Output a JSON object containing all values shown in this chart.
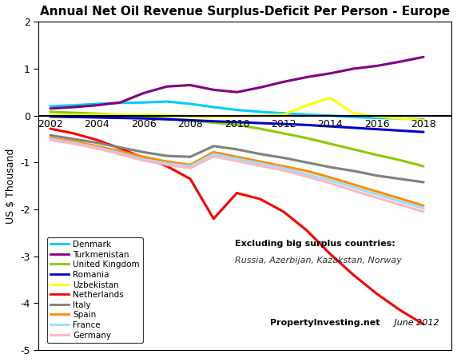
{
  "title": "Annual Net Oil Revenue Surplus-Deficit Per Person - Europe",
  "ylabel": "US $ Thousand",
  "xlim": [
    2001.5,
    2019.2
  ],
  "ylim": [
    -5,
    2
  ],
  "yticks": [
    -5,
    -4,
    -3,
    -2,
    -1,
    0,
    1,
    2
  ],
  "xticks": [
    2002,
    2004,
    2006,
    2008,
    2010,
    2012,
    2014,
    2016,
    2018
  ],
  "annotation1": "Excluding big surplus countries:",
  "annotation2": "Russia, Azerbijan, Kazakstan, Norway",
  "watermark": "PropertyInvesting.net",
  "watermark2": " June 2012",
  "series": {
    "Denmark": {
      "color": "#00CCFF",
      "years": [
        2002,
        2003,
        2004,
        2005,
        2006,
        2007,
        2008,
        2009,
        2010,
        2011,
        2012,
        2013,
        2014,
        2015,
        2016,
        2017,
        2018
      ],
      "values": [
        0.2,
        0.22,
        0.25,
        0.27,
        0.28,
        0.3,
        0.25,
        0.18,
        0.12,
        0.08,
        0.05,
        0.02,
        0.0,
        -0.03,
        -0.05,
        -0.06,
        -0.08
      ]
    },
    "Turkmenistan": {
      "color": "#800080",
      "years": [
        2002,
        2003,
        2004,
        2005,
        2006,
        2007,
        2008,
        2009,
        2010,
        2011,
        2012,
        2013,
        2014,
        2015,
        2016,
        2017,
        2018
      ],
      "values": [
        0.15,
        0.18,
        0.22,
        0.28,
        0.48,
        0.62,
        0.65,
        0.55,
        0.5,
        0.6,
        0.72,
        0.82,
        0.9,
        1.0,
        1.06,
        1.15,
        1.25
      ]
    },
    "United Kingdom": {
      "color": "#88CC00",
      "years": [
        2002,
        2003,
        2004,
        2005,
        2006,
        2007,
        2008,
        2009,
        2010,
        2011,
        2012,
        2013,
        2014,
        2015,
        2016,
        2017,
        2018
      ],
      "values": [
        0.08,
        0.06,
        0.04,
        0.02,
        -0.02,
        -0.06,
        -0.1,
        -0.15,
        -0.2,
        -0.28,
        -0.38,
        -0.48,
        -0.6,
        -0.72,
        -0.84,
        -0.95,
        -1.08
      ]
    },
    "Romania": {
      "color": "#0000CC",
      "years": [
        2002,
        2003,
        2004,
        2005,
        2006,
        2007,
        2008,
        2009,
        2010,
        2011,
        2012,
        2013,
        2014,
        2015,
        2016,
        2017,
        2018
      ],
      "values": [
        -0.02,
        -0.03,
        -0.04,
        -0.05,
        -0.06,
        -0.08,
        -0.1,
        -0.12,
        -0.14,
        -0.16,
        -0.18,
        -0.2,
        -0.23,
        -0.26,
        -0.29,
        -0.32,
        -0.35
      ]
    },
    "Uzbekistan": {
      "color": "#FFFF00",
      "years": [
        2002,
        2003,
        2004,
        2005,
        2006,
        2007,
        2008,
        2009,
        2010,
        2011,
        2012,
        2013,
        2014,
        2015,
        2016,
        2017,
        2018
      ],
      "values": [
        0.01,
        0.01,
        0.02,
        0.02,
        0.02,
        0.01,
        -0.02,
        -0.03,
        -0.01,
        0.0,
        0.02,
        0.22,
        0.38,
        0.05,
        -0.02,
        -0.06,
        -0.1
      ]
    },
    "Netherlands": {
      "color": "#FF0000",
      "years": [
        2002,
        2003,
        2004,
        2005,
        2006,
        2007,
        2008,
        2009,
        2010,
        2011,
        2012,
        2013,
        2014,
        2015,
        2016,
        2017,
        2018
      ],
      "values": [
        -0.28,
        -0.38,
        -0.52,
        -0.7,
        -0.9,
        -1.08,
        -1.35,
        -2.2,
        -1.65,
        -1.78,
        -2.05,
        -2.45,
        -2.95,
        -3.4,
        -3.8,
        -4.15,
        -4.45
      ]
    },
    "Italy": {
      "color": "#808080",
      "years": [
        2002,
        2003,
        2004,
        2005,
        2006,
        2007,
        2008,
        2009,
        2010,
        2011,
        2012,
        2013,
        2014,
        2015,
        2016,
        2017,
        2018
      ],
      "values": [
        -0.42,
        -0.5,
        -0.58,
        -0.68,
        -0.78,
        -0.86,
        -0.88,
        -0.65,
        -0.72,
        -0.82,
        -0.9,
        -1.0,
        -1.1,
        -1.18,
        -1.28,
        -1.35,
        -1.42
      ]
    },
    "Spain": {
      "color": "#FF8C00",
      "years": [
        2002,
        2003,
        2004,
        2005,
        2006,
        2007,
        2008,
        2009,
        2010,
        2011,
        2012,
        2013,
        2014,
        2015,
        2016,
        2017,
        2018
      ],
      "values": [
        -0.48,
        -0.55,
        -0.65,
        -0.76,
        -0.88,
        -0.98,
        -1.05,
        -0.78,
        -0.88,
        -0.98,
        -1.08,
        -1.18,
        -1.32,
        -1.47,
        -1.62,
        -1.77,
        -1.92
      ]
    },
    "France": {
      "color": "#99DDFF",
      "years": [
        2002,
        2003,
        2004,
        2005,
        2006,
        2007,
        2008,
        2009,
        2010,
        2011,
        2012,
        2013,
        2014,
        2015,
        2016,
        2017,
        2018
      ],
      "values": [
        -0.5,
        -0.58,
        -0.68,
        -0.8,
        -0.93,
        -1.02,
        -1.08,
        -0.82,
        -0.92,
        -1.02,
        -1.12,
        -1.25,
        -1.38,
        -1.53,
        -1.68,
        -1.83,
        -1.98
      ]
    },
    "Germany": {
      "color": "#FFB6C1",
      "years": [
        2002,
        2003,
        2004,
        2005,
        2006,
        2007,
        2008,
        2009,
        2010,
        2011,
        2012,
        2013,
        2014,
        2015,
        2016,
        2017,
        2018
      ],
      "values": [
        -0.52,
        -0.6,
        -0.7,
        -0.83,
        -0.96,
        -1.05,
        -1.12,
        -0.87,
        -0.97,
        -1.07,
        -1.17,
        -1.3,
        -1.44,
        -1.6,
        -1.75,
        -1.9,
        -2.05
      ]
    }
  }
}
